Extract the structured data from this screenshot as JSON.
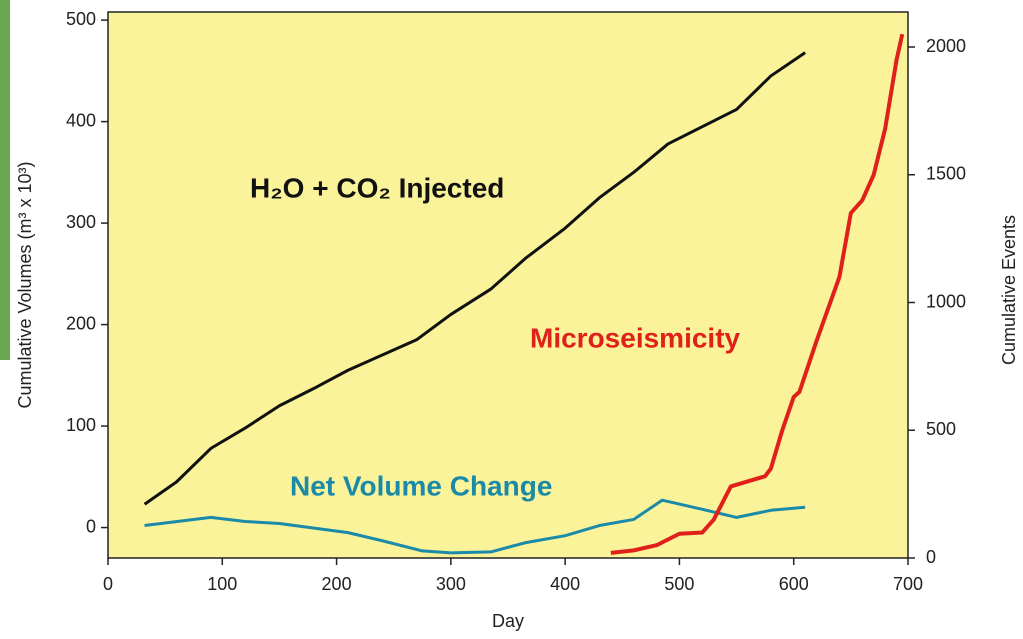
{
  "chart_data": {
    "type": "line",
    "x_label": "Day",
    "y_label": "Cumulative Volumes (m³ x 10³)",
    "y2_label": "Cumulative Events",
    "xlim": [
      0,
      700
    ],
    "xticks": [
      0,
      100,
      200,
      300,
      400,
      500,
      600,
      700
    ],
    "ylim": [
      -30,
      508
    ],
    "yticks": [
      0,
      100,
      200,
      300,
      400,
      500
    ],
    "y2lim": [
      0,
      2137
    ],
    "y2ticks": [
      0,
      500,
      1000,
      1500,
      2000
    ],
    "series": [
      {
        "name": "H₂O + CO₂ Injected",
        "color": "#111111",
        "x": [
          32,
          60,
          90,
          120,
          150,
          180,
          210,
          240,
          270,
          300,
          335,
          365,
          400,
          430,
          460,
          490,
          520,
          550,
          580,
          610
        ],
        "values": [
          23,
          45,
          78,
          98,
          120,
          137,
          155,
          170,
          185,
          210,
          235,
          265,
          295,
          325,
          350,
          378,
          395,
          412,
          445,
          468
        ]
      },
      {
        "name": "Net Volume Change",
        "color": "#1a8aa8",
        "x": [
          32,
          90,
          120,
          150,
          210,
          240,
          275,
          300,
          335,
          365,
          400,
          430,
          460,
          485,
          520,
          550,
          580,
          610
        ],
        "values": [
          2,
          10,
          6,
          4,
          -5,
          -13,
          -23,
          -25,
          -24,
          -15,
          -8,
          2,
          8,
          27,
          18,
          10,
          17,
          20
        ]
      },
      {
        "name": "Microseismicity",
        "color": "#e0201a",
        "axis": "y2",
        "x": [
          440,
          460,
          480,
          500,
          520,
          530,
          545,
          560,
          575,
          580,
          590,
          600,
          605,
          620,
          640,
          650,
          660,
          670,
          680,
          690,
          695
        ],
        "values": [
          20,
          30,
          50,
          95,
          100,
          150,
          280,
          300,
          320,
          350,
          500,
          630,
          650,
          850,
          1100,
          1350,
          1400,
          1500,
          1680,
          1950,
          2050
        ]
      }
    ]
  }
}
